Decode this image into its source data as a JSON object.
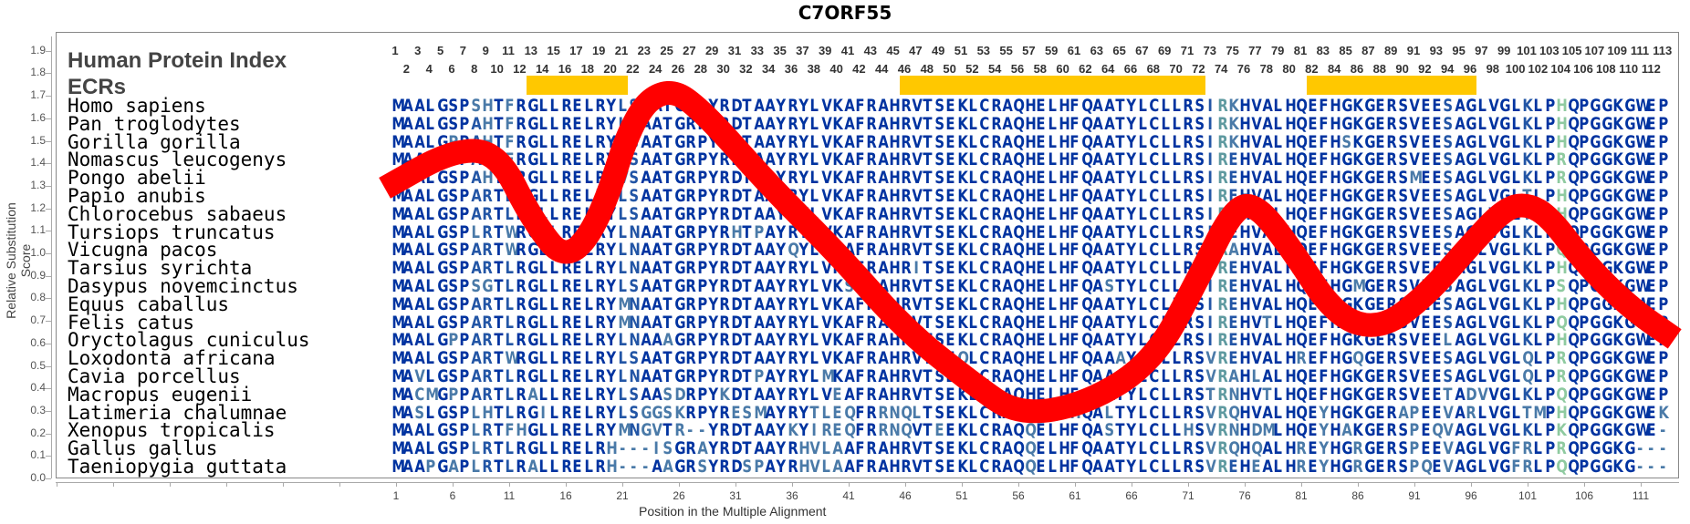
{
  "title": "C7ORF55",
  "header": {
    "protein_index_label": "Human Protein Index",
    "ecr_label": "ECRs"
  },
  "colors": {
    "conserved": "#0033a0",
    "mid": "#2255a5",
    "variable": "#4a7aa8",
    "gap": "#4a7aa8",
    "rare": "#5f9aa0",
    "distinct": "#8fcaa0",
    "ecr_bar": "#ffc800",
    "curve": "#ff0000"
  },
  "chart_data": {
    "type": "line",
    "title": "C7ORF55",
    "xlabel": "Position in the Multiple Alignment",
    "ylabel": "Relative Substitution Score",
    "ylim": [
      0.0,
      1.9
    ],
    "xlim": [
      1,
      113
    ],
    "yticks": [
      "0.0",
      "0.1",
      "0.2",
      "0.3",
      "0.4",
      "0.5",
      "0.6",
      "0.7",
      "0.8",
      "0.9",
      "1.0",
      "1.1",
      "1.2",
      "1.3",
      "1.4",
      "1.5",
      "1.6",
      "1.7",
      "1.8",
      "1.9"
    ],
    "xticks": [
      "1",
      "6",
      "11",
      "16",
      "21",
      "26",
      "31",
      "36",
      "41",
      "46",
      "51",
      "56",
      "61",
      "66",
      "71",
      "76",
      "81",
      "86",
      "91",
      "96",
      "101",
      "106",
      "111"
    ],
    "series": [
      {
        "name": "Relative Substitution Score",
        "x": [
          0,
          6,
          10,
          13,
          16,
          19,
          22,
          25,
          28,
          34,
          40,
          46,
          52,
          56,
          62,
          68,
          72,
          75,
          77,
          80,
          84,
          88,
          92,
          96,
          99,
          101,
          103,
          106,
          110,
          114
        ],
        "y": [
          1.29,
          1.46,
          1.45,
          1.15,
          0.96,
          1.14,
          1.62,
          1.74,
          1.64,
          1.3,
          1.0,
          0.66,
          0.42,
          0.28,
          0.33,
          0.52,
          0.9,
          1.2,
          1.22,
          1.03,
          0.72,
          0.66,
          0.81,
          1.04,
          1.2,
          1.22,
          1.16,
          0.96,
          0.76,
          0.62
        ]
      }
    ],
    "ecr_regions": [
      [
        13,
        21
      ],
      [
        46,
        72
      ],
      [
        82,
        96
      ]
    ],
    "grid": false,
    "legend": "none"
  },
  "positions_top_odd": [
    "1",
    "3",
    "5",
    "7",
    "9",
    "11",
    "13",
    "15",
    "17",
    "19",
    "21",
    "23",
    "25",
    "27",
    "29",
    "31",
    "33",
    "35",
    "37",
    "39",
    "41",
    "43",
    "45",
    "47",
    "49",
    "51",
    "53",
    "55",
    "57",
    "59",
    "61",
    "63",
    "65",
    "67",
    "69",
    "71",
    "73",
    "75",
    "77",
    "79",
    "81",
    "83",
    "85",
    "87",
    "89",
    "91",
    "93",
    "95",
    "97",
    "99",
    "101",
    "103",
    "105",
    "107",
    "109",
    "111",
    "113"
  ],
  "positions_top_even": [
    "2",
    "4",
    "6",
    "8",
    "10",
    "12",
    "14",
    "16",
    "18",
    "20",
    "22",
    "24",
    "26",
    "28",
    "30",
    "32",
    "34",
    "36",
    "38",
    "40",
    "42",
    "44",
    "46",
    "48",
    "50",
    "52",
    "54",
    "56",
    "58",
    "60",
    "62",
    "64",
    "66",
    "68",
    "70",
    "72",
    "74",
    "76",
    "78",
    "80",
    "82",
    "84",
    "86",
    "88",
    "90",
    "92",
    "94",
    "96",
    "98",
    "100",
    "102",
    "104",
    "106",
    "108",
    "110",
    "112"
  ],
  "alignment": [
    {
      "species": "Homo sapiens",
      "seq": "MAALGSPSHTFRGLLRELRYLSAATGRPYRDTAAYRYLVKAFRAHRVTSEKLCRAQHELHFQAATYLCLLRSIRKHVALHQEFHGKGERSVEESAGLVGLKLPHQPGGKGWEP"
    },
    {
      "species": "Pan troglodytes",
      "seq": "MAALGSPAHTFRGLLRELRYLSAATGRPYRDTAAYRYLVKAFRAHRVTSEKLCRAQHELHFQAATYLCLLRSIRKHVALHQEFHGKGERSVEESAGLVGLKLPHQPGGKGWEP"
    },
    {
      "species": "Gorilla gorilla",
      "seq": "MAALGPPAHTFRGLLRELRYLSAATGRPYRDTAAYRYLVKAFRAHRVTSEKLCRAQHELHFQAATYLCLLRSIRKHVALHQEFHSKGERSVEESAGLVGLKLPHQPGGKGWEP"
    },
    {
      "species": "Nomascus leucogenys",
      "seq": "MAALGSPAHTFRGLLRELRYLSAATGRPYRDTAAYRYLVKAFRAHRVTSEKLCRAQHELHFQAATYLCLLRSIREHVALHQEFHGKGERSVEESAGLVGLKLPRQPGGKGWEP"
    },
    {
      "species": "Pongo abelii",
      "seq": "MAALGSPAHTFRGLLRELRYVSAATGRPYRDTAAYRYLVKAFRAHRVTSEKLCRAQHELHFQAATYLCLLRSIREHVALHQEFHGKGERSMEESAGLVGLKLPRQPGGKGWEP"
    },
    {
      "species": "Papio anubis",
      "seq": "MAALGSPARTLRGLLRELRYLSAATGRPYRDTAAYRYLVKAFRAHRVTSEKLCRAQHELHFQAATYLCLLRSIREHVALHQEFHGKGERSVEESAGLVGLTLPHQPGGKGWEP"
    },
    {
      "species": "Chlorocebus sabaeus",
      "seq": "MAALGSPARTLRGLLRELRYLSAATGRPYRDTAAYRYLVKAFRAHRVTSEKLCRAQHELHFQAATYLCLLRSIREHVALHQEFHGKGERSVEESAGLVGLTLPHQPGGKGWEP"
    },
    {
      "species": "Tursiops truncatus",
      "seq": "MAALGSPLRTWRGLLRELRYLNAATGRPYRHTPAYRYLVKAFRAHRVTSEKLCRAQHELHFQAATYLCLLRSIREHVALHQEFHGKGERSVEESAGLVGLKLPQQPGGKGWEP"
    },
    {
      "species": "Vicugna pacos",
      "seq": "MAALGSPARTWRGLLRELRYLNAATGRPYRDTAAYQYLVKAFRAHRVTSEKLCRAQHELHFQAATYLCLLRSIRAHVALHQEFHGKGERSVEESAGLVGLKLPQQPGGKGWEP"
    },
    {
      "species": "Tarsius syrichta",
      "seq": "MAALGSPARTLRGLLRELRYLNAATGRPYRDTAAYRYLVKAFRAHRITSEKLCRAQHELHFQAATYLCLLRSIREHVALHQEFHGKGERSVEESAGLVGLKLPHQPGGKGWEP"
    },
    {
      "species": "Dasypus novemcinctus",
      "seq": "MAALGSPSGTLRGLLRELRYLSAATGRPYRDTAAYRYLVKSFRAHRVTSEKLCRAQHELHFQASTYLCLLRSIREHVALHQEFHGMGERSVEESAGLVGLKLPSQPGGKGWEP"
    },
    {
      "species": "Equus caballus",
      "seq": "MAALGSPARTLRGLLRELRYMNAATGRPYRDTAAYRYLVKAFRAHRVTSEKLCRAQHELHFQAATYLCLLRSIREHVALHQEFHGKGERSVEESAGLVGLKLPHQPGGKGWEP"
    },
    {
      "species": "Felis catus",
      "seq": "MAALGSPARTLRGLLRELRYMNAATGRPYRDTAAYRYLVKAFRAHRVTSEKLCRAQHELHFQAATYLCLLRSIREHVTLHQEFHGKGERSVEESAGLVGLKLPQQPGGKGWEP"
    },
    {
      "species": "Oryctolagus cuniculus",
      "seq": "MAALGPPARTLRGLLRELRYLNAAAGRPYRDTAAYRYLVKAFRAHRVTSEKLCRAQHELHFQAATYLCLLRSIREHVALHQEFHGKGERSVEELAGLVGLKLPHQPGGKGWEP"
    },
    {
      "species": "Loxodonta africana",
      "seq": "MAALGSPARTWRGLLRELRYLSAATGRPYRDTAAYRYLVKAFRAHRVTGEQLCRAQHELHFQAAAYLCLLRSVREHVALHREFHGQGERSVEESAGLVGLQLPRQPGGKGWEP"
    },
    {
      "species": "Cavia porcellus",
      "seq": "MAVLGSPARTLRGLLRELRYLNAATGRPYRDTPAYRYLMKAFRAHRVTSEKLCRAQHELHFQAAAYLCLLRSVRAHLALHQEFHGKGERSVEESAGLVGLQLPRQPGGKGWEP"
    },
    {
      "species": "Macropus eugenii",
      "seq": "MACMGPPARTLRALLRELRYLSAASDRPYKDTAAYRYLVEAFRAHRVTSEKLCRAQHELHFQAATYLCLLRSTRNHVTLHQEFHGKGERSVEETADVVGLKLPQQPGGKGWEP"
    },
    {
      "species": "Latimeria chalumnae",
      "seq": "MASLGSPLHTLRGILRELRYLSGGSKRPYRESMAYRYTLEQFRRNQLTSEKLCRAQQEQHHQALTYLCLLRSVRQHVALHQEYHGKGERAPEEVARLVGLTMPHQPGGKGWEK"
    },
    {
      "species": "Xenopus tropicalis",
      "seq": "MAALGSPLRTFHGLLRELRYMNGVTR--YRDTAAYKYIREQFRRNQVTEEKLCRAQQELHFQASTYLCLLHSVRNHDMLHQEYHAKGERSPEQVAGLVGLKLPKQPGGKGWE-"
    },
    {
      "species": "Gallus gallus",
      "seq": "MAALGSPLRTLRGLLRELRH---ISGRAYRDTAAYRHVLAAFRAHRVTSEKLCRAQQELHFQAATYLCLLRSVRQHQALHREYHGRGERSPEEVAGLVGFRLPRQPGGKG---"
    },
    {
      "species": "Taeniopygia guttata",
      "seq": "MAAPGAPLRTLRALLRELRH---AAGRSYRDSPAYRHVLAAFRAHRVTSEKLCRAQQELHFQAATYLCLLRSVREHEALHREYHGRGERSPQEVAGLVGFRLPQQPGGKG---"
    }
  ]
}
